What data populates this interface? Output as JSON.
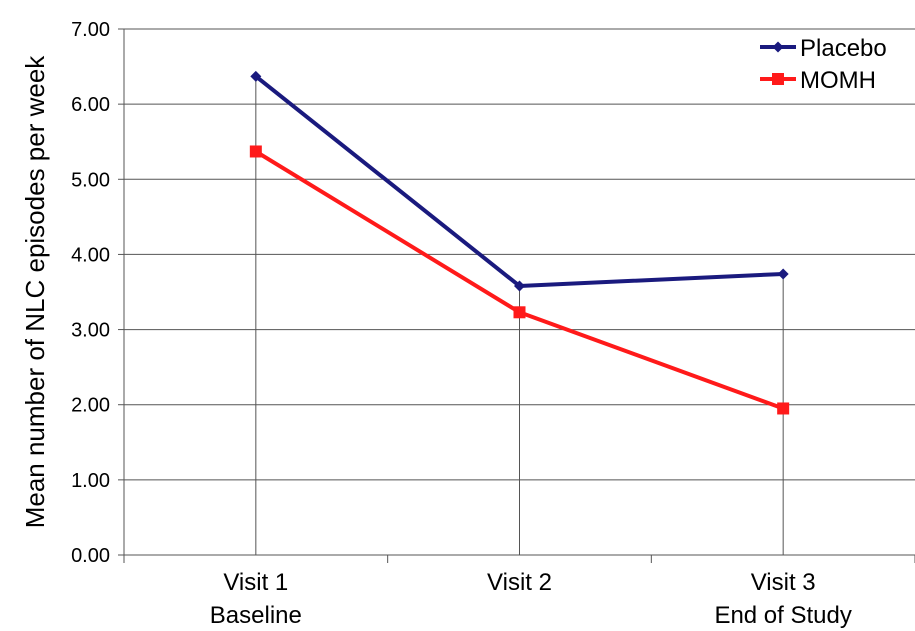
{
  "chart_data": {
    "type": "line",
    "title": "",
    "xlabel": "",
    "ylabel": "Mean number of NLC episodes per week",
    "categories": [
      [
        "Visit 1",
        "Baseline"
      ],
      [
        "Visit 2"
      ],
      [
        "Visit 3",
        "End of Study"
      ]
    ],
    "ylim": [
      0,
      7
    ],
    "yticks": [
      "0.00",
      "1.00",
      "2.00",
      "3.00",
      "4.00",
      "5.00",
      "6.00",
      "7.00"
    ],
    "grid": true,
    "legend_position": "top-right",
    "series": [
      {
        "name": "Placebo",
        "values": [
          6.37,
          3.58,
          3.74
        ],
        "color": "#1a1a7e",
        "marker": "diamond"
      },
      {
        "name": "MOMH",
        "values": [
          5.37,
          3.23,
          1.95
        ],
        "color": "#ff1a1a",
        "marker": "square"
      }
    ]
  }
}
